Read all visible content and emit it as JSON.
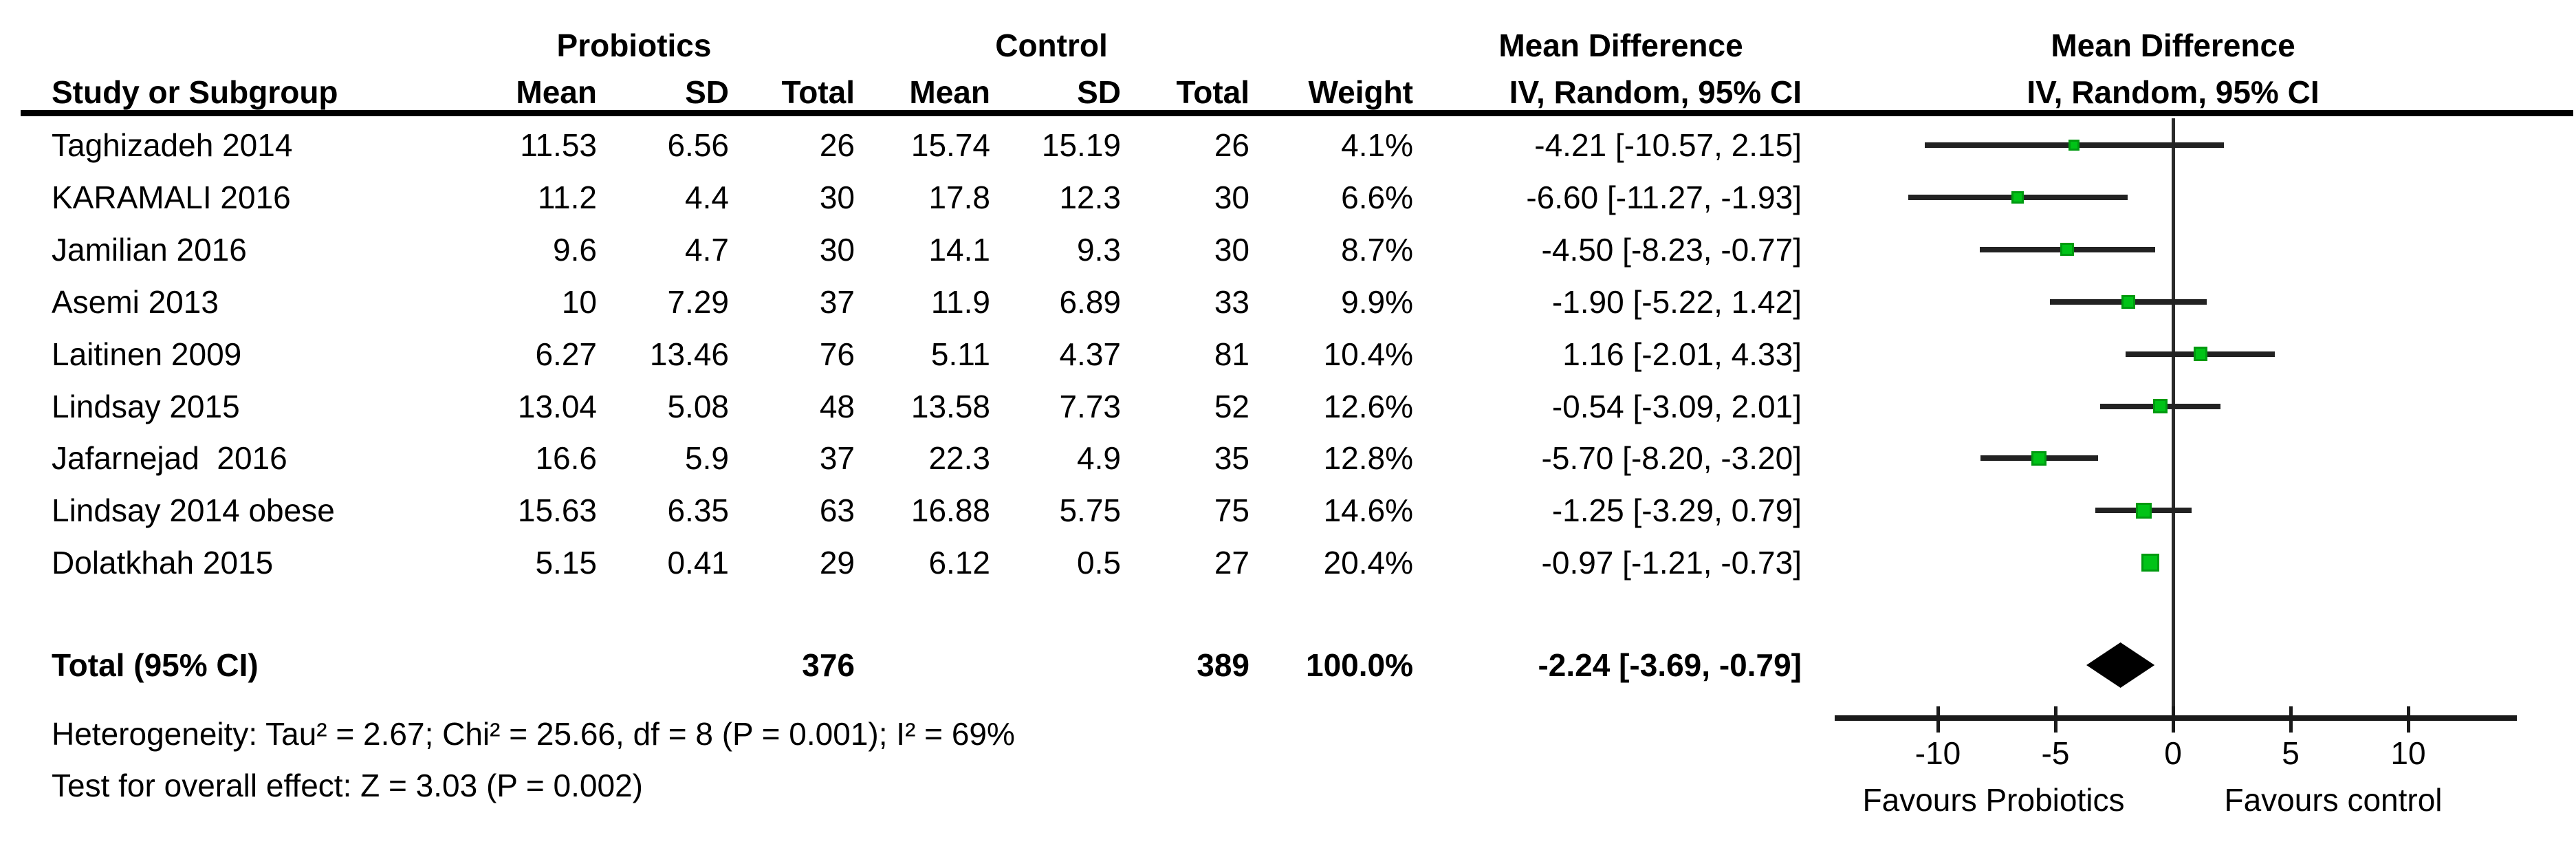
{
  "figure": {
    "headers": {
      "group_probiotics": "Probiotics",
      "group_control": "Control",
      "md_col_title": "Mean Difference",
      "md_plot_title": "Mean Difference",
      "study": "Study or Subgroup",
      "mean1": "Mean",
      "sd1": "SD",
      "total1": "Total",
      "mean2": "Mean",
      "sd2": "SD",
      "total2": "Total",
      "weight": "Weight",
      "iv_col": "IV, Random, 95% CI",
      "iv_plot": "IV, Random, 95% CI"
    }
  },
  "chart_data": {
    "type": "forest",
    "effect_measure": "Mean Difference",
    "model": "IV, Random, 95% CI",
    "group1_label": "Probiotics",
    "group2_label": "Control",
    "studies": [
      {
        "study": "Taghizadeh 2014",
        "mean1": "11.53",
        "sd1": "6.56",
        "total1": 26,
        "mean2": "15.74",
        "sd2": "15.19",
        "total2": 26,
        "weight": "4.1%",
        "ci_text": "-4.21 [-10.57, 2.15]",
        "md": -4.21,
        "ci_low": -10.57,
        "ci_high": 2.15
      },
      {
        "study": "KARAMALI 2016",
        "mean1": "11.2",
        "sd1": "4.4",
        "total1": 30,
        "mean2": "17.8",
        "sd2": "12.3",
        "total2": 30,
        "weight": "6.6%",
        "ci_text": "-6.60 [-11.27, -1.93]",
        "md": -6.6,
        "ci_low": -11.27,
        "ci_high": -1.93
      },
      {
        "study": "Jamilian 2016",
        "mean1": "9.6",
        "sd1": "4.7",
        "total1": 30,
        "mean2": "14.1",
        "sd2": "9.3",
        "total2": 30,
        "weight": "8.7%",
        "ci_text": "-4.50 [-8.23, -0.77]",
        "md": -4.5,
        "ci_low": -8.23,
        "ci_high": -0.77
      },
      {
        "study": "Asemi 2013",
        "mean1": "10",
        "sd1": "7.29",
        "total1": 37,
        "mean2": "11.9",
        "sd2": "6.89",
        "total2": 33,
        "weight": "9.9%",
        "ci_text": "-1.90 [-5.22, 1.42]",
        "md": -1.9,
        "ci_low": -5.22,
        "ci_high": 1.42
      },
      {
        "study": "Laitinen 2009",
        "mean1": "6.27",
        "sd1": "13.46",
        "total1": 76,
        "mean2": "5.11",
        "sd2": "4.37",
        "total2": 81,
        "weight": "10.4%",
        "ci_text": "1.16 [-2.01, 4.33]",
        "md": 1.16,
        "ci_low": -2.01,
        "ci_high": 4.33
      },
      {
        "study": "Lindsay 2015",
        "mean1": "13.04",
        "sd1": "5.08",
        "total1": 48,
        "mean2": "13.58",
        "sd2": "7.73",
        "total2": 52,
        "weight": "12.6%",
        "ci_text": "-0.54 [-3.09, 2.01]",
        "md": -0.54,
        "ci_low": -3.09,
        "ci_high": 2.01
      },
      {
        "study": "Jafarnejad  2016",
        "mean1": "16.6",
        "sd1": "5.9",
        "total1": 37,
        "mean2": "22.3",
        "sd2": "4.9",
        "total2": 35,
        "weight": "12.8%",
        "ci_text": "-5.70 [-8.20, -3.20]",
        "md": -5.7,
        "ci_low": -8.2,
        "ci_high": -3.2
      },
      {
        "study": "Lindsay 2014 obese",
        "mean1": "15.63",
        "sd1": "6.35",
        "total1": 63,
        "mean2": "16.88",
        "sd2": "5.75",
        "total2": 75,
        "weight": "14.6%",
        "ci_text": "-1.25 [-3.29, 0.79]",
        "md": -1.25,
        "ci_low": -3.29,
        "ci_high": 0.79
      },
      {
        "study": "Dolatkhah 2015",
        "mean1": "5.15",
        "sd1": "0.41",
        "total1": 29,
        "mean2": "6.12",
        "sd2": "0.5",
        "total2": 27,
        "weight": "20.4%",
        "ci_text": "-0.97 [-1.21, -0.73]",
        "md": -0.97,
        "ci_low": -1.21,
        "ci_high": -0.73
      }
    ],
    "total": {
      "label": "Total (95% CI)",
      "total1": "376",
      "total2": "389",
      "weight": "100.0%",
      "ci_text": "-2.24 [-3.69, -0.79]",
      "md": -2.24,
      "ci_low": -3.69,
      "ci_high": -0.79
    },
    "heterogeneity": "Heterogeneity: Tau² = 2.67; Chi² = 25.66, df = 8 (P = 0.001); I² = 69%",
    "overall_effect": "Test for overall effect: Z = 3.03 (P = 0.002)",
    "axis": {
      "ticks": [
        -10,
        -5,
        0,
        5,
        10
      ],
      "range": [
        -14.4,
        14.6
      ],
      "grid": false
    },
    "favours_left": "Favours Probiotics",
    "favours_right": "Favours control",
    "marker_color": "#00c317",
    "marker_border_color": "#009a10",
    "line_color": "#222222",
    "diamond_color": "#000000"
  }
}
